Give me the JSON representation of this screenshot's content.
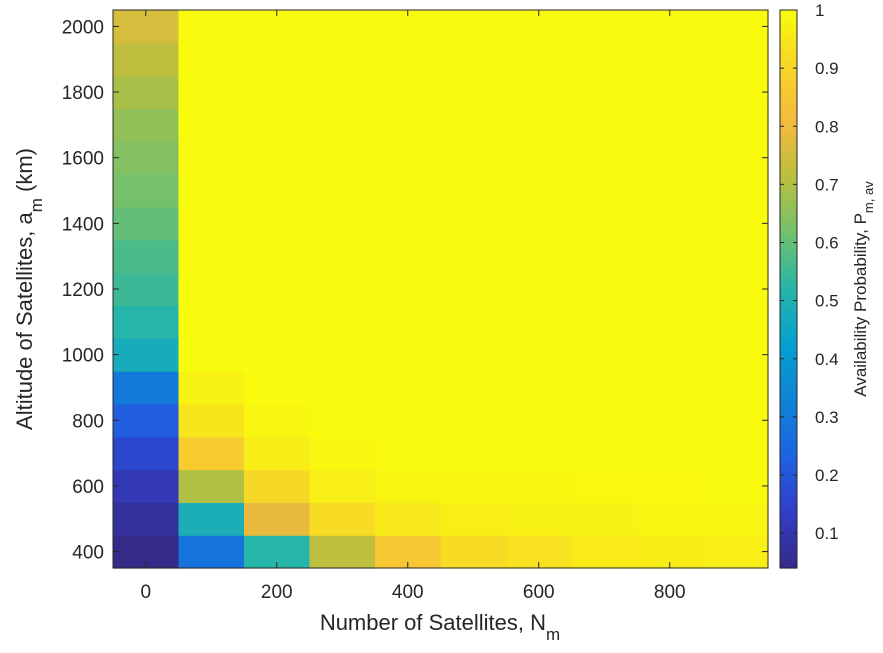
{
  "chart_data": {
    "type": "heatmap",
    "x": [
      0,
      100,
      200,
      300,
      400,
      500,
      600,
      700,
      800,
      900
    ],
    "y": [
      400,
      500,
      600,
      700,
      800,
      900,
      1000,
      1100,
      1200,
      1300,
      1400,
      1500,
      1600,
      1700,
      1800,
      1900,
      2000
    ],
    "values": [
      [
        0.02,
        0.28,
        0.52,
        0.72,
        0.85,
        0.92,
        0.935,
        0.96,
        0.965,
        0.97
      ],
      [
        0.07,
        0.49,
        0.79,
        0.92,
        0.955,
        0.97,
        0.975,
        0.98,
        0.985,
        0.985
      ],
      [
        0.11,
        0.7,
        0.91,
        0.97,
        0.985,
        0.99,
        0.99,
        0.995,
        0.995,
        1.0
      ],
      [
        0.16,
        0.87,
        0.965,
        0.99,
        1.0,
        1.0,
        1.0,
        1.0,
        1.0,
        1.0
      ],
      [
        0.22,
        0.945,
        0.99,
        1.0,
        1.0,
        1.0,
        1.0,
        1.0,
        1.0,
        1.0
      ],
      [
        0.3,
        0.98,
        1.0,
        1.0,
        1.0,
        1.0,
        1.0,
        1.0,
        1.0,
        1.0
      ],
      [
        0.48,
        1.0,
        1.0,
        1.0,
        1.0,
        1.0,
        1.0,
        1.0,
        1.0,
        1.0
      ],
      [
        0.52,
        1.0,
        1.0,
        1.0,
        1.0,
        1.0,
        1.0,
        1.0,
        1.0,
        1.0
      ],
      [
        0.55,
        1.0,
        1.0,
        1.0,
        1.0,
        1.0,
        1.0,
        1.0,
        1.0,
        1.0
      ],
      [
        0.57,
        1.0,
        1.0,
        1.0,
        1.0,
        1.0,
        1.0,
        1.0,
        1.0,
        1.0
      ],
      [
        0.6,
        1.0,
        1.0,
        1.0,
        1.0,
        1.0,
        1.0,
        1.0,
        1.0,
        1.0
      ],
      [
        0.62,
        1.0,
        1.0,
        1.0,
        1.0,
        1.0,
        1.0,
        1.0,
        1.0,
        1.0
      ],
      [
        0.64,
        1.0,
        1.0,
        1.0,
        1.0,
        1.0,
        1.0,
        1.0,
        1.0,
        1.0
      ],
      [
        0.66,
        1.0,
        1.0,
        1.0,
        1.0,
        1.0,
        1.0,
        1.0,
        1.0,
        1.0
      ],
      [
        0.69,
        1.0,
        1.0,
        1.0,
        1.0,
        1.0,
        1.0,
        1.0,
        1.0,
        1.0
      ],
      [
        0.72,
        1.0,
        1.0,
        1.0,
        1.0,
        1.0,
        1.0,
        1.0,
        1.0,
        1.0
      ],
      [
        0.76,
        1.0,
        1.0,
        1.0,
        1.0,
        1.0,
        1.0,
        1.0,
        1.0,
        1.0
      ]
    ],
    "xlabel": "Number of Satellites, N",
    "xlabel_sub": "m",
    "ylabel": "Altitude of Satellites, a",
    "ylabel_sub": "m",
    "ylabel_unit": "(km)",
    "xticks": [
      0,
      200,
      400,
      600,
      800
    ],
    "xtick_labels": [
      "0",
      "200",
      "400",
      "600",
      "800"
    ],
    "yticks": [
      400,
      600,
      800,
      1000,
      1200,
      1400,
      1600,
      1800,
      2000
    ],
    "ytick_labels": [
      "400",
      "600",
      "800",
      "1000",
      "1200",
      "1400",
      "1600",
      "1800",
      "2000"
    ],
    "xlim": [
      -50,
      950
    ],
    "ylim": [
      350,
      2050
    ],
    "colorbar": {
      "label": "Availability Probability, P",
      "label_sub": "m, av",
      "range": [
        0.04,
        1.0
      ],
      "ticks": [
        0.1,
        0.2,
        0.3,
        0.4,
        0.5,
        0.6,
        0.7,
        0.8,
        0.9,
        1
      ],
      "tick_labels": [
        "0.1",
        "0.2",
        "0.3",
        "0.4",
        "0.5",
        "0.6",
        "0.7",
        "0.8",
        "0.9",
        "1"
      ],
      "colormap": "parula"
    }
  }
}
